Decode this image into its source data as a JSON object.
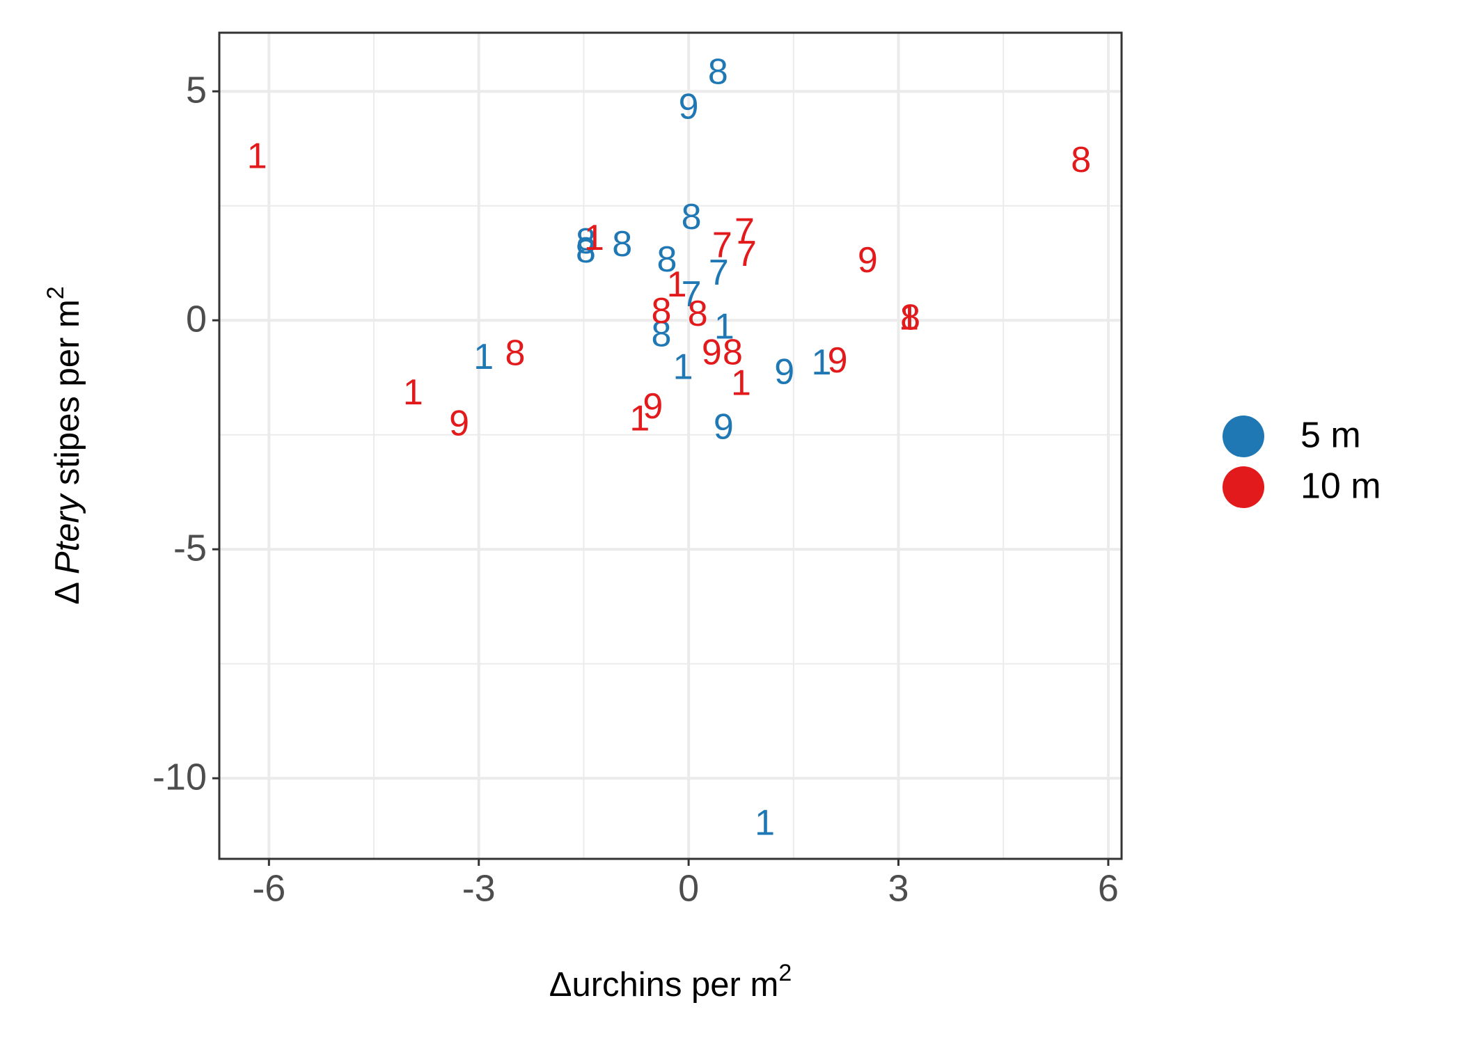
{
  "chart_data": {
    "type": "scatter",
    "xlabel": {
      "text": "Δurchins per m",
      "sup": "2"
    },
    "ylabel": {
      "prefix": "Δ ",
      "italic": "Ptery",
      "suffix": " stipes per m",
      "sup": "2"
    },
    "xlim": [
      -6.71,
      6.19
    ],
    "ylim": [
      -11.76,
      6.28
    ],
    "xticks": [
      -6,
      -3,
      0,
      3,
      6
    ],
    "yticks": [
      -10,
      -5,
      0,
      5
    ],
    "xminor": [
      -4.5,
      -1.5,
      1.5,
      4.5
    ],
    "yminor": [
      -7.5,
      -2.5,
      2.5
    ],
    "grid": true,
    "legend": "right",
    "series": [
      {
        "name": "5 m",
        "color": "#1f78b4",
        "x": [
          0.42,
          0,
          0.04,
          -1.47,
          -1.47,
          -0.95,
          -0.31,
          0.43,
          0.04,
          0.51,
          -0.39,
          -2.93,
          -0.08,
          1.37,
          1.9,
          3.15,
          0.5,
          1.09
        ],
        "values": [
          5.4,
          4.64,
          2.23,
          1.7,
          1.5,
          1.64,
          1.31,
          1.02,
          0.55,
          -0.16,
          -0.33,
          -0.82,
          -1.04,
          -1.15,
          -0.94,
          0.04,
          -2.35,
          -11.0
        ],
        "labels": [
          "8",
          "9",
          "8",
          "8",
          "8",
          "8",
          "8",
          "7",
          "7",
          "1",
          "8",
          "1",
          "1",
          "9",
          "1",
          "1",
          "9",
          "1"
        ]
      },
      {
        "name": "10 m",
        "color": "#e31a1c",
        "x": [
          -6.17,
          5.61,
          -1.35,
          0.48,
          0.8,
          0.83,
          2.56,
          -0.17,
          -0.39,
          0.13,
          3.17,
          3.15,
          -2.48,
          0.33,
          0.63,
          2.13,
          0.75,
          -3.94,
          -3.28,
          -0.7,
          -0.51
        ],
        "values": [
          3.56,
          3.48,
          1.78,
          1.62,
          1.92,
          1.43,
          1.29,
          0.76,
          0.18,
          0.12,
          0.04,
          0.04,
          -0.74,
          -0.72,
          -0.72,
          -0.9,
          -1.39,
          -1.6,
          -2.27,
          -2.17,
          -1.9
        ],
        "labels": [
          "1",
          "8",
          "1",
          "7",
          "7",
          "7",
          "9",
          "1",
          "8",
          "8",
          "8",
          "1",
          "8",
          "9",
          "8",
          "9",
          "1",
          "1",
          "9",
          "1",
          "9"
        ]
      }
    ]
  }
}
